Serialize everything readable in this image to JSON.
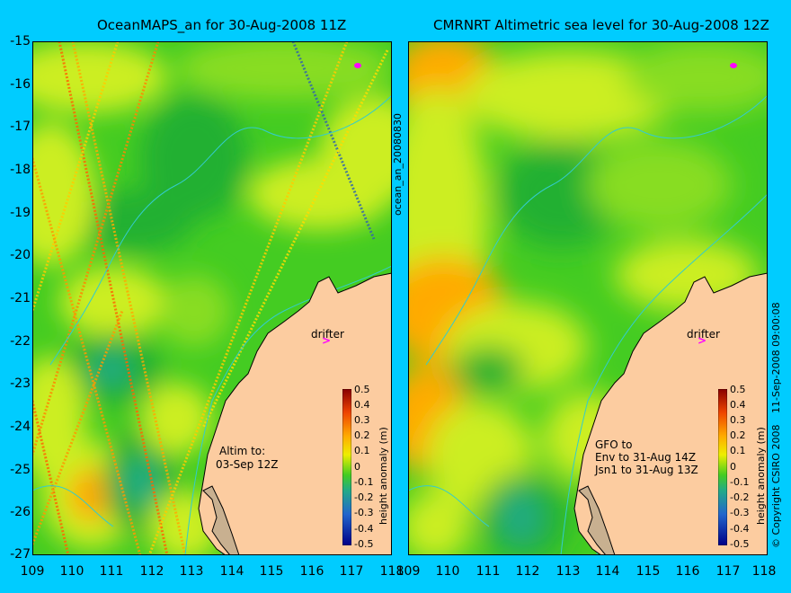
{
  "left": {
    "title": "OceanMAPS_an for 30-Aug-2008 11Z",
    "drifter_label": "drifter",
    "note_line1": "Altim to:",
    "note_line2": "03-Sep 12Z",
    "side_label": "ocean_an_20080830"
  },
  "right": {
    "title": "CMRNRT Altimetric sea level  for 30-Aug-2008 12Z",
    "drifter_label": "drifter",
    "note_line1": "GFO to",
    "note_line2": "Env to 31-Aug 14Z",
    "note_line3": "Jsn1 to 31-Aug 13Z",
    "side_label": "11-Sep-2008 09:00:08",
    "copyright": "© Copyright CSIRO 2008"
  },
  "axes": {
    "x_ticks": [
      "109",
      "110",
      "111",
      "112",
      "113",
      "114",
      "115",
      "116",
      "117",
      "118"
    ],
    "y_ticks": [
      "-15",
      "-16",
      "-17",
      "-18",
      "-19",
      "-20",
      "-21",
      "-22",
      "-23",
      "-24",
      "-25",
      "-26",
      "-27"
    ]
  },
  "colorbar": {
    "label": "height anomaly (m)",
    "ticks": [
      "0.5",
      "0.4",
      "0.3",
      "0.2",
      "0.1",
      "0",
      "-0.1",
      "-0.2",
      "-0.3",
      "-0.4",
      "-0.5"
    ]
  },
  "colors": {
    "background": "#00ccff",
    "land": "#fccca0",
    "green_low": "#22b030",
    "green_mid": "#44cc22",
    "green_light": "#88dd22",
    "yellow": "#ccee22",
    "yellow_strong": "#eeee00",
    "orange": "#ffaa00",
    "teal": "#22aa88",
    "drifter": "#ff00ff"
  },
  "icons": {
    "drifter_marker": "drifter-arrow-icon",
    "float_marker": "magenta-dot-icon"
  }
}
